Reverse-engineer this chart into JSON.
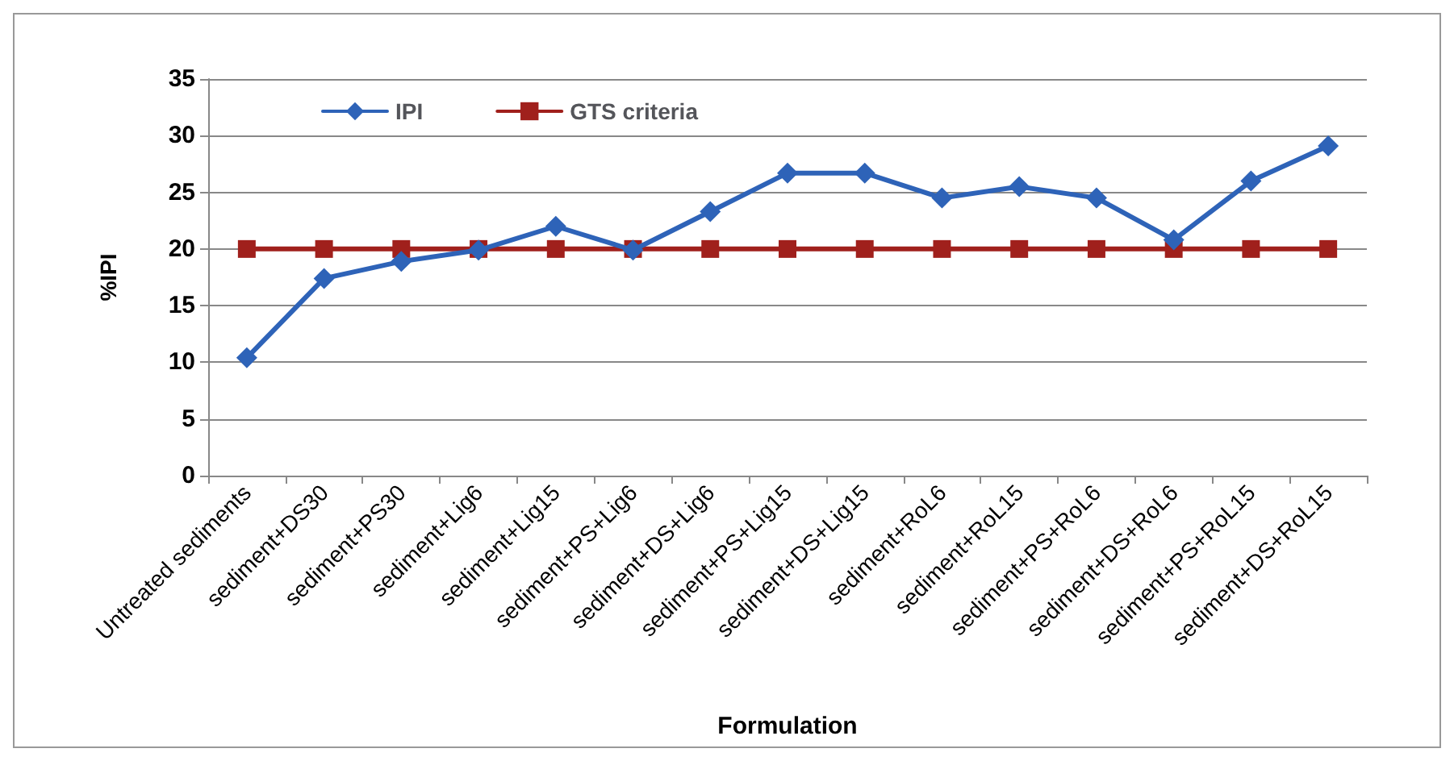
{
  "chart_data": {
    "type": "line",
    "xlabel": "Formulation",
    "ylabel": "%IPI",
    "categories": [
      "Untreated sediments",
      "sediment+DS30",
      "sediment+PS30",
      "sediment+Lig6",
      "sediment+Lig15",
      "sediment+PS+Lig6",
      "sediment+DS+Lig6",
      "sediment+PS+Lig15",
      "sediment+DS+Lig15",
      "sediment+RoL6",
      "sediment+RoL15",
      "sediment+PS+RoL6",
      "sediment+DS+RoL6",
      "sediment+PS+RoL15",
      "sediment+DS+RoL15"
    ],
    "series": [
      {
        "name": "IPI",
        "color": "#2e63b8",
        "marker": "diamond",
        "values": [
          10.4,
          17.4,
          18.9,
          19.9,
          22.0,
          19.9,
          23.3,
          26.7,
          26.7,
          24.5,
          25.5,
          24.5,
          20.8,
          26.0,
          29.1
        ]
      },
      {
        "name": "GTS criteria",
        "color": "#a0201c",
        "marker": "square",
        "values": [
          20,
          20,
          20,
          20,
          20,
          20,
          20,
          20,
          20,
          20,
          20,
          20,
          20,
          20,
          20
        ]
      }
    ],
    "ylim": [
      0,
      35
    ],
    "yticks": [
      0,
      5,
      10,
      15,
      20,
      25,
      30,
      35
    ],
    "grid": "y",
    "legend": "top left",
    "line_style": "solid"
  }
}
